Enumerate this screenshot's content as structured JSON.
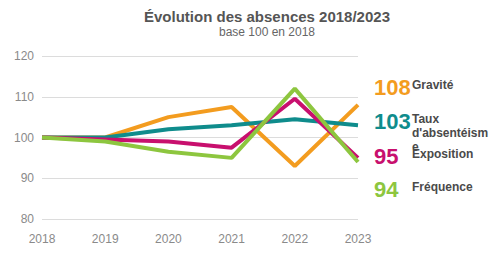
{
  "chart_data": {
    "type": "line",
    "title": "Évolution des absences 2018/2023",
    "subtitle": "base 100 en 2018",
    "categories": [
      "2018",
      "2019",
      "2020",
      "2021",
      "2022",
      "2023"
    ],
    "series": [
      {
        "name": "Gravité",
        "color": "#f39c1f",
        "values": [
          100,
          100,
          105,
          107.5,
          93,
          108
        ]
      },
      {
        "name": "Taux d'absentéisme",
        "color": "#0f8c8c",
        "values": [
          100,
          100,
          102,
          103,
          104.5,
          103
        ]
      },
      {
        "name": "Exposition",
        "color": "#c8106e",
        "values": [
          100,
          99.5,
          99,
          97.5,
          109.5,
          95
        ]
      },
      {
        "name": "Fréquence",
        "color": "#8dc63f",
        "values": [
          100,
          99,
          96.5,
          95,
          112,
          94
        ]
      }
    ],
    "ylim": [
      80,
      120
    ],
    "yticks": [
      80,
      90,
      100,
      110,
      120
    ],
    "grid": true
  }
}
